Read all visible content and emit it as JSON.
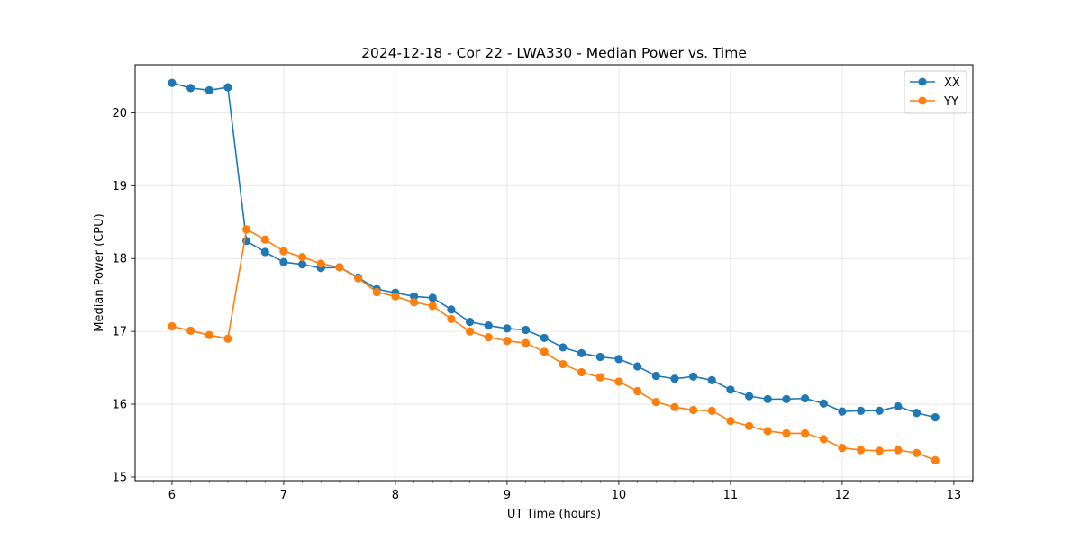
{
  "chart_data": {
    "type": "line",
    "title": "2024-12-18 - Cor 22 - LWA330 - Median Power vs. Time",
    "xlabel": "UT Time (hours)",
    "ylabel": "Median Power (CPU)",
    "xlim": [
      5.67,
      13.17
    ],
    "ylim": [
      14.95,
      20.66
    ],
    "xticks": [
      "6",
      "7",
      "8",
      "9",
      "10",
      "11",
      "12",
      "13"
    ],
    "yticks": [
      "15",
      "16",
      "17",
      "18",
      "19",
      "20"
    ],
    "grid": true,
    "legend_position": "top-right",
    "x": [
      6.0,
      6.1667,
      6.3333,
      6.5,
      6.6667,
      6.8333,
      7.0,
      7.1667,
      7.3333,
      7.5,
      7.6667,
      7.8333,
      8.0,
      8.1667,
      8.3333,
      8.5,
      8.6667,
      8.8333,
      9.0,
      9.1667,
      9.3333,
      9.5,
      9.6667,
      9.8333,
      10.0,
      10.1667,
      10.3333,
      10.5,
      10.6667,
      10.8333,
      11.0,
      11.1667,
      11.3333,
      11.5,
      11.6667,
      11.8333,
      12.0,
      12.1667,
      12.3333,
      12.5,
      12.6667,
      12.8333
    ],
    "series": [
      {
        "name": "XX",
        "color": "#1f77b4",
        "values": [
          20.41,
          20.34,
          20.31,
          20.35,
          18.24,
          18.09,
          17.95,
          17.92,
          17.87,
          17.88,
          17.74,
          17.58,
          17.53,
          17.48,
          17.46,
          17.3,
          17.13,
          17.08,
          17.04,
          17.02,
          16.91,
          16.78,
          16.7,
          16.65,
          16.62,
          16.52,
          16.39,
          16.35,
          16.38,
          16.33,
          16.2,
          16.11,
          16.07,
          16.07,
          16.08,
          16.01,
          15.9,
          15.91,
          15.91,
          15.97,
          15.88,
          15.82
        ]
      },
      {
        "name": "YY",
        "color": "#ff7f0e",
        "values": [
          17.07,
          17.01,
          16.95,
          16.9,
          18.4,
          18.26,
          18.1,
          18.02,
          17.93,
          17.88,
          17.73,
          17.54,
          17.48,
          17.4,
          17.35,
          17.17,
          17.0,
          16.92,
          16.87,
          16.84,
          16.72,
          16.55,
          16.44,
          16.37,
          16.31,
          16.18,
          16.03,
          15.96,
          15.92,
          15.91,
          15.77,
          15.7,
          15.63,
          15.6,
          15.6,
          15.52,
          15.4,
          15.37,
          15.36,
          15.37,
          15.33,
          15.23
        ]
      }
    ]
  }
}
